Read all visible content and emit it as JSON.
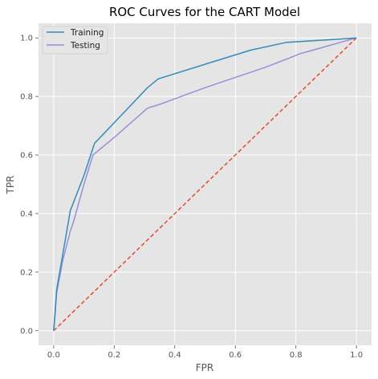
{
  "chart_data": {
    "type": "line",
    "title": "ROC Curves for the CART Model",
    "xlabel": "FPR",
    "ylabel": "TPR",
    "xlim": [
      -0.05,
      1.05
    ],
    "ylim": [
      -0.05,
      1.05
    ],
    "xticks": [
      0.0,
      0.2,
      0.4,
      0.6,
      0.8,
      1.0
    ],
    "yticks": [
      0.0,
      0.2,
      0.4,
      0.6,
      0.8,
      1.0
    ],
    "xtick_labels": [
      "0.0",
      "0.2",
      "0.4",
      "0.6",
      "0.8",
      "1.0"
    ],
    "ytick_labels": [
      "0.0",
      "0.2",
      "0.4",
      "0.6",
      "0.8",
      "1.0"
    ],
    "grid": true,
    "legend_position": "top-left",
    "series": [
      {
        "name": "Training",
        "color": "#348abd",
        "x": [
          0.0,
          0.005,
          0.01,
          0.03,
          0.055,
          0.1,
          0.135,
          0.2,
          0.31,
          0.345,
          0.5,
          0.65,
          0.77,
          0.9,
          1.0
        ],
        "y": [
          0.0,
          0.07,
          0.14,
          0.26,
          0.41,
          0.53,
          0.64,
          0.71,
          0.83,
          0.86,
          0.91,
          0.958,
          0.985,
          0.993,
          1.0
        ]
      },
      {
        "name": "Testing",
        "color": "#988ed5",
        "x": [
          0.0,
          0.005,
          0.01,
          0.03,
          0.055,
          0.065,
          0.1,
          0.13,
          0.2,
          0.31,
          0.35,
          0.5,
          0.7,
          0.8,
          0.81,
          1.0
        ],
        "y": [
          0.0,
          0.06,
          0.13,
          0.24,
          0.34,
          0.37,
          0.5,
          0.6,
          0.66,
          0.76,
          0.773,
          0.83,
          0.9,
          0.94,
          0.945,
          1.0
        ]
      },
      {
        "color": "#e24a33",
        "style": "dashed",
        "x": [
          0.0,
          1.0
        ],
        "y": [
          0.0,
          1.0
        ]
      }
    ]
  }
}
